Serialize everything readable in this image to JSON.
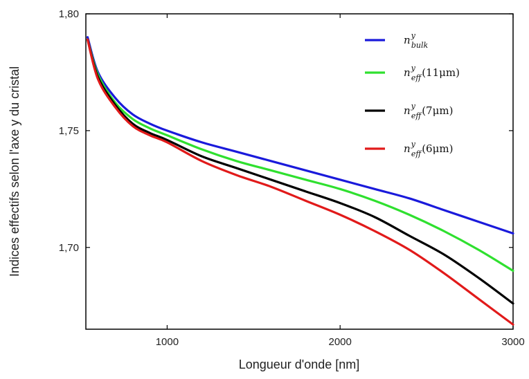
{
  "chart_data": {
    "type": "line",
    "xlabel": "Longueur d'onde [nm]",
    "ylabel": "Indices effectifs  selon l'axe y du cristal",
    "xlim": [
      530,
      3000
    ],
    "ylim": [
      1.665,
      1.8
    ],
    "xticks": [
      {
        "value": 1000,
        "label": "1000"
      },
      {
        "value": 2000,
        "label": "2000"
      },
      {
        "value": 3000,
        "label": "3000"
      }
    ],
    "yticks": [
      {
        "value": 1.7,
        "label": "1,70"
      },
      {
        "value": 1.75,
        "label": "1,75"
      },
      {
        "value": 1.8,
        "label": "1,80"
      }
    ],
    "legend_position": "top-right",
    "series": [
      {
        "name": "n^y_bulk",
        "legend": {
          "base": "n",
          "sup": "y",
          "sub": "bulk",
          "suffix": ""
        },
        "color": "#1a1adb",
        "x": [
          540,
          600,
          700,
          800,
          900,
          1000,
          1200,
          1400,
          1600,
          1800,
          2000,
          2200,
          2400,
          2600,
          2800,
          3000
        ],
        "y": [
          1.79,
          1.775,
          1.764,
          1.757,
          1.753,
          1.75,
          1.745,
          1.741,
          1.737,
          1.733,
          1.729,
          1.725,
          1.721,
          1.716,
          1.711,
          1.706
        ]
      },
      {
        "name": "n^y_eff(11μm)",
        "legend": {
          "base": "n",
          "sup": "y",
          "sub": "eff",
          "suffix": "(11μm)"
        },
        "color": "#2fe02f",
        "x": [
          540,
          600,
          700,
          800,
          900,
          1000,
          1200,
          1400,
          1600,
          1800,
          2000,
          2200,
          2400,
          2600,
          2800,
          3000
        ],
        "y": [
          1.789,
          1.774,
          1.762,
          1.755,
          1.751,
          1.748,
          1.742,
          1.737,
          1.733,
          1.729,
          1.725,
          1.72,
          1.714,
          1.707,
          1.699,
          1.69
        ]
      },
      {
        "name": "n^y_eff(7μm)",
        "legend": {
          "base": "n",
          "sup": "y",
          "sub": "eff",
          "suffix": "(7μm)"
        },
        "color": "#000000",
        "x": [
          540,
          600,
          700,
          800,
          900,
          1000,
          1200,
          1400,
          1600,
          1800,
          2000,
          2200,
          2400,
          2600,
          2800,
          3000
        ],
        "y": [
          1.789,
          1.773,
          1.761,
          1.753,
          1.749,
          1.746,
          1.739,
          1.734,
          1.729,
          1.724,
          1.719,
          1.713,
          1.705,
          1.697,
          1.687,
          1.676
        ]
      },
      {
        "name": "n^y_eff(6μm)",
        "legend": {
          "base": "n",
          "sup": "y",
          "sub": "eff",
          "suffix": "(6μm)"
        },
        "color": "#e11a1a",
        "x": [
          540,
          600,
          700,
          800,
          900,
          1000,
          1200,
          1400,
          1600,
          1800,
          2000,
          2200,
          2400,
          2600,
          2800,
          3000
        ],
        "y": [
          1.789,
          1.772,
          1.76,
          1.752,
          1.748,
          1.745,
          1.737,
          1.731,
          1.726,
          1.72,
          1.714,
          1.707,
          1.699,
          1.689,
          1.678,
          1.667
        ]
      }
    ]
  }
}
